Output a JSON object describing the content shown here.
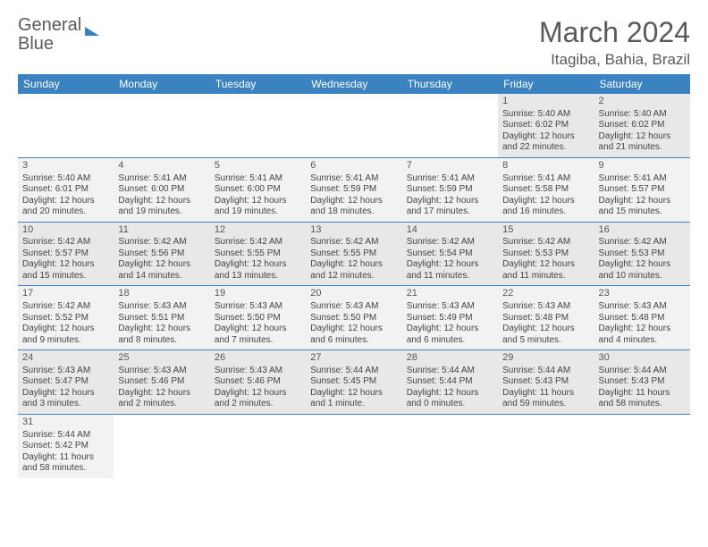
{
  "branding": {
    "logo_part1": "General",
    "logo_part2": "Blue"
  },
  "header": {
    "month_title": "March 2024",
    "location": "Itagiba, Bahia, Brazil"
  },
  "colors": {
    "accent": "#3b83c0",
    "text": "#5a5a5a",
    "cell_alt1": "#e8e8e8",
    "cell_alt2": "#f2f2f2",
    "background": "#ffffff"
  },
  "weekdays": [
    "Sunday",
    "Monday",
    "Tuesday",
    "Wednesday",
    "Thursday",
    "Friday",
    "Saturday"
  ],
  "days": {
    "1": {
      "sunrise": "5:40 AM",
      "sunset": "6:02 PM",
      "daylight": "12 hours and 22 minutes."
    },
    "2": {
      "sunrise": "5:40 AM",
      "sunset": "6:02 PM",
      "daylight": "12 hours and 21 minutes."
    },
    "3": {
      "sunrise": "5:40 AM",
      "sunset": "6:01 PM",
      "daylight": "12 hours and 20 minutes."
    },
    "4": {
      "sunrise": "5:41 AM",
      "sunset": "6:00 PM",
      "daylight": "12 hours and 19 minutes."
    },
    "5": {
      "sunrise": "5:41 AM",
      "sunset": "6:00 PM",
      "daylight": "12 hours and 19 minutes."
    },
    "6": {
      "sunrise": "5:41 AM",
      "sunset": "5:59 PM",
      "daylight": "12 hours and 18 minutes."
    },
    "7": {
      "sunrise": "5:41 AM",
      "sunset": "5:59 PM",
      "daylight": "12 hours and 17 minutes."
    },
    "8": {
      "sunrise": "5:41 AM",
      "sunset": "5:58 PM",
      "daylight": "12 hours and 16 minutes."
    },
    "9": {
      "sunrise": "5:41 AM",
      "sunset": "5:57 PM",
      "daylight": "12 hours and 15 minutes."
    },
    "10": {
      "sunrise": "5:42 AM",
      "sunset": "5:57 PM",
      "daylight": "12 hours and 15 minutes."
    },
    "11": {
      "sunrise": "5:42 AM",
      "sunset": "5:56 PM",
      "daylight": "12 hours and 14 minutes."
    },
    "12": {
      "sunrise": "5:42 AM",
      "sunset": "5:55 PM",
      "daylight": "12 hours and 13 minutes."
    },
    "13": {
      "sunrise": "5:42 AM",
      "sunset": "5:55 PM",
      "daylight": "12 hours and 12 minutes."
    },
    "14": {
      "sunrise": "5:42 AM",
      "sunset": "5:54 PM",
      "daylight": "12 hours and 11 minutes."
    },
    "15": {
      "sunrise": "5:42 AM",
      "sunset": "5:53 PM",
      "daylight": "12 hours and 11 minutes."
    },
    "16": {
      "sunrise": "5:42 AM",
      "sunset": "5:53 PM",
      "daylight": "12 hours and 10 minutes."
    },
    "17": {
      "sunrise": "5:42 AM",
      "sunset": "5:52 PM",
      "daylight": "12 hours and 9 minutes."
    },
    "18": {
      "sunrise": "5:43 AM",
      "sunset": "5:51 PM",
      "daylight": "12 hours and 8 minutes."
    },
    "19": {
      "sunrise": "5:43 AM",
      "sunset": "5:50 PM",
      "daylight": "12 hours and 7 minutes."
    },
    "20": {
      "sunrise": "5:43 AM",
      "sunset": "5:50 PM",
      "daylight": "12 hours and 6 minutes."
    },
    "21": {
      "sunrise": "5:43 AM",
      "sunset": "5:49 PM",
      "daylight": "12 hours and 6 minutes."
    },
    "22": {
      "sunrise": "5:43 AM",
      "sunset": "5:48 PM",
      "daylight": "12 hours and 5 minutes."
    },
    "23": {
      "sunrise": "5:43 AM",
      "sunset": "5:48 PM",
      "daylight": "12 hours and 4 minutes."
    },
    "24": {
      "sunrise": "5:43 AM",
      "sunset": "5:47 PM",
      "daylight": "12 hours and 3 minutes."
    },
    "25": {
      "sunrise": "5:43 AM",
      "sunset": "5:46 PM",
      "daylight": "12 hours and 2 minutes."
    },
    "26": {
      "sunrise": "5:43 AM",
      "sunset": "5:46 PM",
      "daylight": "12 hours and 2 minutes."
    },
    "27": {
      "sunrise": "5:44 AM",
      "sunset": "5:45 PM",
      "daylight": "12 hours and 1 minute."
    },
    "28": {
      "sunrise": "5:44 AM",
      "sunset": "5:44 PM",
      "daylight": "12 hours and 0 minutes."
    },
    "29": {
      "sunrise": "5:44 AM",
      "sunset": "5:43 PM",
      "daylight": "11 hours and 59 minutes."
    },
    "30": {
      "sunrise": "5:44 AM",
      "sunset": "5:43 PM",
      "daylight": "11 hours and 58 minutes."
    },
    "31": {
      "sunrise": "5:44 AM",
      "sunset": "5:42 PM",
      "daylight": "11 hours and 58 minutes."
    }
  },
  "labels": {
    "sunrise_prefix": "Sunrise: ",
    "sunset_prefix": "Sunset: ",
    "daylight_prefix": "Daylight: "
  },
  "layout": {
    "first_weekday_index": 5,
    "days_in_month": 31,
    "columns": 7
  }
}
